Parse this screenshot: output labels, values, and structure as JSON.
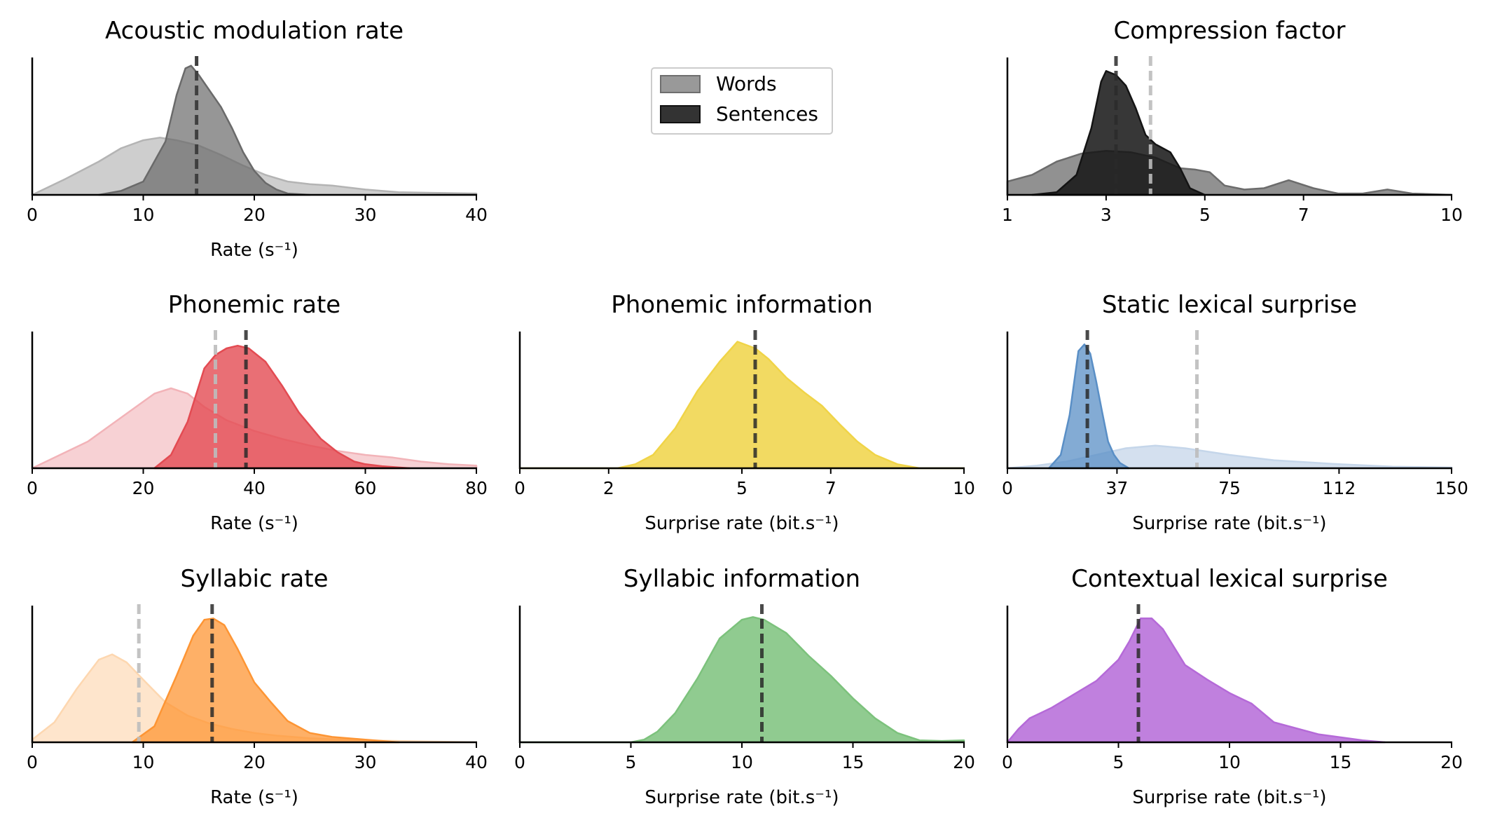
{
  "chart_data": [
    {
      "type": "area",
      "title": "Acoustic modulation rate",
      "xlabel": "Rate (s⁻¹)",
      "xlim": [
        0,
        40
      ],
      "xticks": [
        "0",
        "10",
        "20",
        "30",
        "40"
      ],
      "grid": false,
      "series": [
        {
          "name": "Words",
          "color": "#b4b4b4",
          "opacity": 0.65,
          "x": [
            0,
            3,
            6,
            8,
            10,
            11.5,
            13,
            15,
            17,
            19,
            21,
            23,
            25,
            27,
            30,
            33,
            36,
            40
          ],
          "y": [
            0.0,
            0.12,
            0.25,
            0.35,
            0.41,
            0.43,
            0.41,
            0.37,
            0.3,
            0.22,
            0.15,
            0.1,
            0.08,
            0.07,
            0.04,
            0.02,
            0.015,
            0.01
          ],
          "marker": 14.8
        },
        {
          "name": "Sentences",
          "color": "#6a6a6a",
          "opacity": 0.7,
          "x": [
            6,
            8,
            10,
            12,
            13,
            13.8,
            14.3,
            15,
            16,
            17,
            18,
            19,
            20,
            21,
            22,
            23,
            25
          ],
          "y": [
            0.0,
            0.03,
            0.1,
            0.4,
            0.75,
            0.95,
            0.97,
            0.9,
            0.78,
            0.66,
            0.5,
            0.32,
            0.18,
            0.09,
            0.04,
            0.01,
            0.0
          ],
          "marker": 14.8
        }
      ]
    },
    {
      "type": "area",
      "title": "Compression factor",
      "xlim": [
        1,
        10
      ],
      "xticks": [
        "1",
        "3",
        "5",
        "7",
        "10"
      ],
      "grid": false,
      "series": [
        {
          "name": "Words",
          "color": "#6c6c6c",
          "opacity": 0.75,
          "x": [
            1,
            1.5,
            2,
            2.5,
            3,
            3.5,
            4,
            4.5,
            4.8,
            5.1,
            5.4,
            5.8,
            6.2,
            6.7,
            7.2,
            7.7,
            8.2,
            8.7,
            9.2,
            10
          ],
          "y": [
            0.1,
            0.15,
            0.25,
            0.31,
            0.33,
            0.32,
            0.28,
            0.2,
            0.19,
            0.17,
            0.07,
            0.04,
            0.05,
            0.11,
            0.05,
            0.01,
            0.01,
            0.04,
            0.01,
            0.0
          ],
          "marker": 3.9
        },
        {
          "name": "Sentences",
          "color": "#141414",
          "opacity": 0.85,
          "x": [
            1.5,
            2,
            2.4,
            2.7,
            2.9,
            3.0,
            3.2,
            3.4,
            3.6,
            3.8,
            4.0,
            4.3,
            4.5,
            4.7,
            5
          ],
          "y": [
            0.0,
            0.02,
            0.15,
            0.5,
            0.85,
            0.93,
            0.9,
            0.82,
            0.65,
            0.45,
            0.38,
            0.32,
            0.2,
            0.05,
            0.0
          ],
          "marker": 3.2
        }
      ]
    },
    {
      "type": "area",
      "title": "Phonemic rate",
      "xlabel": "Rate (s⁻¹)",
      "xlim": [
        0,
        80
      ],
      "xticks": [
        "0",
        "20",
        "40",
        "60",
        "80"
      ],
      "grid": false,
      "series": [
        {
          "name": "Words",
          "color": "#f2b3b8",
          "opacity": 0.6,
          "x": [
            0,
            5,
            10,
            15,
            20,
            22,
            25,
            28,
            31,
            35,
            40,
            45,
            50,
            55,
            60,
            65,
            70,
            75,
            80
          ],
          "y": [
            0.0,
            0.1,
            0.2,
            0.35,
            0.5,
            0.56,
            0.6,
            0.56,
            0.46,
            0.36,
            0.28,
            0.22,
            0.17,
            0.13,
            0.1,
            0.08,
            0.05,
            0.03,
            0.02
          ],
          "marker": 33
        },
        {
          "name": "Sentences",
          "color": "#e34b52",
          "opacity": 0.8,
          "x": [
            22,
            25,
            28,
            31,
            33,
            35,
            37,
            39,
            42,
            45,
            48,
            52,
            55,
            58,
            60,
            63,
            68
          ],
          "y": [
            0.0,
            0.1,
            0.35,
            0.75,
            0.85,
            0.9,
            0.92,
            0.9,
            0.8,
            0.62,
            0.42,
            0.22,
            0.12,
            0.05,
            0.03,
            0.015,
            0.0
          ],
          "marker": 38.5
        }
      ]
    },
    {
      "type": "area",
      "title": "Phonemic information",
      "xlabel": "Surprise rate (bit.s⁻¹)",
      "xlim": [
        0,
        10
      ],
      "xticks": [
        "0",
        "2",
        "5",
        "7",
        "10"
      ],
      "grid": false,
      "series": [
        {
          "name": "Sentences",
          "color": "#f0d447",
          "opacity": 0.85,
          "x": [
            0,
            2.2,
            2.6,
            3.0,
            3.5,
            4.0,
            4.5,
            4.9,
            5.3,
            5.6,
            6.0,
            6.4,
            6.8,
            7.2,
            7.6,
            8.0,
            8.5,
            9.0,
            10
          ],
          "y": [
            0.0,
            0.0,
            0.03,
            0.1,
            0.3,
            0.58,
            0.8,
            0.95,
            0.9,
            0.82,
            0.68,
            0.57,
            0.47,
            0.33,
            0.2,
            0.1,
            0.03,
            0.0,
            0.0
          ],
          "marker": 5.3
        }
      ]
    },
    {
      "type": "area",
      "title": "Static lexical surprise",
      "xlabel": "Surprise rate (bit.s⁻¹)",
      "xlim": [
        0,
        150
      ],
      "xticks": [
        "0",
        "37",
        "75",
        "112",
        "150"
      ],
      "grid": false,
      "series": [
        {
          "name": "Words",
          "color": "#c5d6ea",
          "opacity": 0.75,
          "x": [
            0,
            10,
            20,
            30,
            40,
            50,
            60,
            75,
            90,
            112,
            130,
            150
          ],
          "y": [
            0.0,
            0.02,
            0.05,
            0.1,
            0.15,
            0.17,
            0.15,
            0.1,
            0.06,
            0.03,
            0.012,
            0.005
          ],
          "marker": 64
        },
        {
          "name": "Sentences",
          "color": "#5a8fc6",
          "opacity": 0.75,
          "x": [
            14,
            18,
            21,
            24,
            26,
            28,
            30,
            32,
            34,
            36,
            38,
            41
          ],
          "y": [
            0.0,
            0.1,
            0.4,
            0.88,
            0.93,
            0.86,
            0.65,
            0.42,
            0.2,
            0.1,
            0.04,
            0.0
          ],
          "marker": 27
        }
      ]
    },
    {
      "type": "area",
      "title": "Syllabic rate",
      "xlabel": "Rate (s⁻¹)",
      "xlim": [
        0,
        40
      ],
      "xticks": [
        "0",
        "10",
        "20",
        "30",
        "40"
      ],
      "grid": false,
      "series": [
        {
          "name": "Words",
          "color": "#fdd7b0",
          "opacity": 0.65,
          "x": [
            0,
            2,
            4,
            6,
            7.2,
            8.5,
            10,
            12,
            14,
            16,
            18,
            20,
            22,
            25,
            28,
            30,
            33,
            36,
            40
          ],
          "y": [
            0.02,
            0.15,
            0.4,
            0.62,
            0.66,
            0.6,
            0.47,
            0.3,
            0.2,
            0.14,
            0.1,
            0.07,
            0.05,
            0.03,
            0.02,
            0.015,
            0.01,
            0.005,
            0.0
          ],
          "marker": 9.6
        },
        {
          "name": "Sentences",
          "color": "#fd9534",
          "opacity": 0.75,
          "x": [
            9,
            11,
            13,
            14.5,
            15.5,
            16.3,
            17.3,
            18.5,
            20,
            21.5,
            23,
            25,
            27,
            30,
            33
          ],
          "y": [
            0.0,
            0.12,
            0.5,
            0.8,
            0.92,
            0.93,
            0.88,
            0.7,
            0.45,
            0.3,
            0.16,
            0.07,
            0.04,
            0.02,
            0.0
          ],
          "marker": 16.2
        }
      ]
    },
    {
      "type": "area",
      "title": "Syllabic information",
      "xlabel": "Surprise rate (bit.s⁻¹)",
      "xlim": [
        0,
        20
      ],
      "xticks": [
        "0",
        "5",
        "10",
        "15",
        "20"
      ],
      "grid": false,
      "series": [
        {
          "name": "Sentences",
          "color": "#7cc27c",
          "opacity": 0.85,
          "x": [
            0,
            5,
            5.6,
            6.2,
            7,
            8,
            9,
            10,
            10.5,
            11,
            12,
            13,
            14,
            15,
            16,
            17,
            18,
            19,
            20
          ],
          "y": [
            0.0,
            0.0,
            0.02,
            0.08,
            0.22,
            0.48,
            0.78,
            0.92,
            0.94,
            0.92,
            0.82,
            0.65,
            0.5,
            0.33,
            0.18,
            0.07,
            0.015,
            0.01,
            0.015
          ],
          "marker": 10.9
        }
      ]
    },
    {
      "type": "area",
      "title": "Contextual lexical surprise",
      "xlabel": "Surprise rate (bit.s⁻¹)",
      "xlim": [
        0,
        20
      ],
      "xticks": [
        "0",
        "5",
        "10",
        "15",
        "20"
      ],
      "grid": false,
      "series": [
        {
          "name": "Sentences",
          "color": "#b56ad8",
          "opacity": 0.85,
          "x": [
            0,
            0.5,
            1,
            1.5,
            2,
            3,
            4,
            5,
            5.5,
            6,
            6.5,
            7,
            8,
            9,
            10,
            11,
            12,
            14,
            16,
            17
          ],
          "y": [
            0.0,
            0.1,
            0.18,
            0.22,
            0.26,
            0.36,
            0.46,
            0.62,
            0.76,
            0.93,
            0.93,
            0.85,
            0.58,
            0.47,
            0.37,
            0.29,
            0.15,
            0.06,
            0.015,
            0.0
          ],
          "marker": 5.9
        }
      ]
    }
  ],
  "legend": {
    "position": "top-center",
    "items": [
      {
        "label": "Words",
        "color": "#999999"
      },
      {
        "label": "Sentences",
        "color": "#333333"
      }
    ]
  }
}
